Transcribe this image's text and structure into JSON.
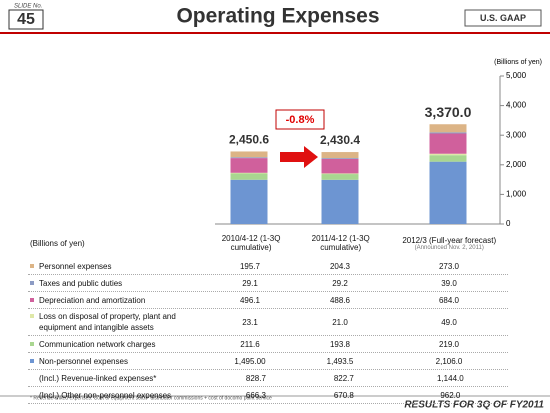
{
  "header": {
    "slide_label": "SLIDE No.",
    "slide_number": "45",
    "title": "Operating Expenses",
    "badge": "U.S. GAAP"
  },
  "chart_data": {
    "type": "stacked_bar",
    "y_label": "(Billions of yen)",
    "categories": [
      "2010/4-12 (1-3Q cumulative)",
      "2011/4-12 (1-3Q cumulative)",
      "2012/3 (Full-year forecast)"
    ],
    "category_note": "(Announced Nov. 2, 2011)",
    "series": [
      {
        "name": "Personnel expenses",
        "color": "#dcb486",
        "values": [
          195.7,
          204.3,
          273.0
        ],
        "value_labels": [
          "195.7",
          "204.3",
          "273.0"
        ]
      },
      {
        "name": "Taxes and public duties",
        "color": "#8c9bc4",
        "values": [
          29.1,
          29.2,
          39.0
        ],
        "value_labels": [
          "29.1",
          "29.2",
          "39.0"
        ]
      },
      {
        "name": "Depreciation and amortization",
        "color": "#d0609c",
        "values": [
          496.1,
          488.6,
          684.0
        ],
        "value_labels": [
          "496.1",
          "488.6",
          "684.0"
        ]
      },
      {
        "name": "Loss on disposal of property, plant and equipment and intangible assets",
        "color": "#dfe8a8",
        "values": [
          23.1,
          21.0,
          49.0
        ],
        "value_labels": [
          "23.1",
          "21.0",
          "49.0"
        ]
      },
      {
        "name": "Communication network charges",
        "color": "#a9d690",
        "values": [
          211.6,
          193.8,
          219.0
        ],
        "value_labels": [
          "211.6",
          "193.8",
          "219.0"
        ]
      },
      {
        "name": "Non-personnel expenses",
        "color": "#6d95d2",
        "values": [
          1495.0,
          1493.5,
          2106.0
        ],
        "value_labels": [
          "1,495.00",
          "1,493.5",
          "2,106.0"
        ]
      }
    ],
    "totals": {
      "values": [
        2450.6,
        2430.4,
        3370.0
      ],
      "value_labels": [
        "2,450.6",
        "2,430.4",
        "3,370.0"
      ]
    },
    "annotation": "-0.8%",
    "ylim": [
      0,
      5000
    ],
    "yticks": [
      0,
      {
        "value": 1000,
        "label": "1,000"
      },
      {
        "value": 2000,
        "label": "2,000"
      },
      {
        "value": 3000,
        "label": "3,000"
      },
      {
        "value": 4000,
        "label": "4,000"
      },
      {
        "value": 5000,
        "label": "5,000"
      }
    ]
  },
  "table": {
    "unit": "(Billions of yen)",
    "rows": [
      {
        "label": "(Incl.) Revenue-linked expenses*",
        "values": [
          "828.7",
          "822.7",
          "1,144.0"
        ]
      },
      {
        "label": "(Incl.) Other non-personnel expenses",
        "values": [
          "666.3",
          "670.8",
          "962.0"
        ]
      }
    ]
  },
  "footnote": "* Revenue-linked expenses: Cost of equipment sold + distributor commissions + cost of docomo point service",
  "footer": "RESULTS FOR 3Q OF FY2011"
}
